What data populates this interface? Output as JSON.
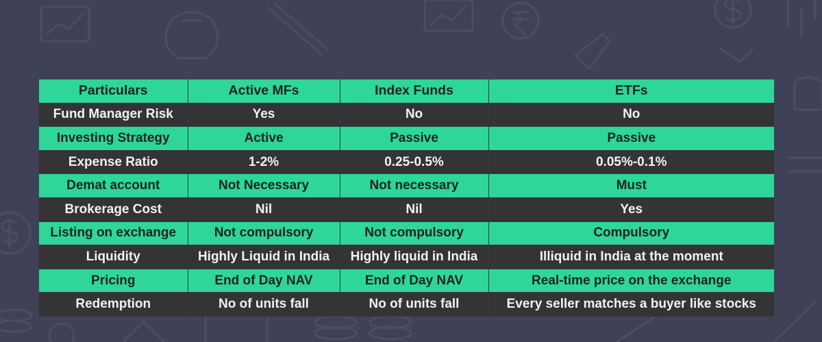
{
  "table": {
    "columns": [
      "Particulars",
      "Active MFs",
      "Index Funds",
      "ETFs"
    ],
    "rows": [
      [
        "Fund Manager Risk",
        "Yes",
        "No",
        "No"
      ],
      [
        "Investing Strategy",
        "Active",
        "Passive",
        "Passive"
      ],
      [
        "Expense Ratio",
        "1-2%",
        "0.25-0.5%",
        "0.05%-0.1%"
      ],
      [
        "Demat account",
        "Not Necessary",
        "Not necessary",
        "Must"
      ],
      [
        "Brokerage Cost",
        "Nil",
        "Nil",
        "Yes"
      ],
      [
        "Listing on exchange",
        "Not compulsory",
        "Not compulsory",
        "Compulsory"
      ],
      [
        "Liquidity",
        "Highly Liquid in India",
        "Highly liquid in India",
        "Illiquid in India at the moment"
      ],
      [
        "Pricing",
        "End of Day NAV",
        "End of Day NAV",
        "Real-time price on the exchange"
      ],
      [
        "Redemption",
        "No of units fall",
        "No of units fall",
        "Every seller matches a buyer like stocks"
      ]
    ]
  },
  "colors": {
    "background": "#3f4257",
    "row_green": "#2fd699",
    "row_dark": "#343437",
    "text_dark": "#1e2121",
    "text_light": "#f2f2f2"
  },
  "decor_icons": [
    "dollar-icon",
    "rupee-icon",
    "coin-stack-icon",
    "chart-icon",
    "pencil-icon",
    "money-bag-icon",
    "rocket-icon"
  ]
}
